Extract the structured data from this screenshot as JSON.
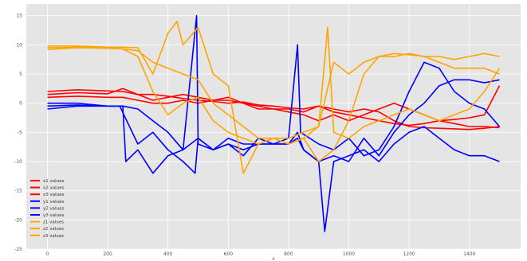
{
  "chart_data": {
    "type": "line",
    "title": "",
    "xlabel": "x",
    "ylabel": "",
    "xlim": [
      -70,
      1570
    ],
    "ylim": [
      -25,
      17
    ],
    "xticks": [
      0,
      200,
      400,
      600,
      800,
      1000,
      1200,
      1400
    ],
    "yticks": [
      15,
      10,
      5,
      0,
      -5,
      -10,
      -15,
      -20,
      -25
    ],
    "grid": true,
    "style": "ggplot",
    "legend_placement": "lower-left",
    "series": [
      {
        "name": "x1 values",
        "color": "#ff0000",
        "x": [
          0,
          100,
          200,
          250,
          300,
          350,
          400,
          450,
          500,
          550,
          600,
          650,
          700,
          750,
          800,
          850,
          900,
          950,
          1000,
          1050,
          1100,
          1150,
          1200,
          1250,
          1300,
          1350,
          1400,
          1450,
          1500
        ],
        "y": [
          2,
          2.3,
          2.1,
          2,
          1.5,
          1.5,
          1.2,
          0.8,
          0.5,
          0.3,
          0,
          0.2,
          -0.3,
          -0.5,
          -0.8,
          -1,
          -0.5,
          -1,
          -1.5,
          -1,
          -1.5,
          -3,
          -4,
          -4.2,
          -4.3,
          -4.4,
          -4.5,
          -4.3,
          -4
        ]
      },
      {
        "name": "x2 values",
        "color": "#ff0000",
        "x": [
          0,
          100,
          200,
          250,
          300,
          350,
          400,
          450,
          500,
          550,
          600,
          650,
          700,
          750,
          800,
          850,
          900,
          950,
          1000,
          1050,
          1100,
          1150,
          1200,
          1250,
          1300,
          1350,
          1400,
          1450,
          1500
        ],
        "y": [
          1.5,
          1.8,
          1.6,
          2.5,
          1.5,
          0.5,
          1,
          1.5,
          1,
          0.5,
          0.5,
          0,
          -0.5,
          -1,
          -1,
          -1.5,
          -0.5,
          -1.5,
          -2,
          -2.5,
          -3,
          -3.5,
          -3.8,
          -3.5,
          -3,
          -2.8,
          -2.5,
          -2,
          3
        ]
      },
      {
        "name": "x3 values",
        "color": "#ff0000",
        "x": [
          0,
          100,
          200,
          250,
          300,
          350,
          400,
          450,
          500,
          550,
          600,
          650,
          700,
          750,
          800,
          850,
          900,
          950,
          1000,
          1050,
          1100,
          1150,
          1200,
          1250,
          1300,
          1350,
          1400,
          1450,
          1500
        ],
        "y": [
          1,
          1.2,
          1,
          1,
          0.5,
          0,
          0,
          0.5,
          0,
          0.5,
          1,
          0,
          -1,
          -1,
          -1.5,
          -2,
          -3,
          -2,
          -3,
          -2,
          -1,
          0,
          -1,
          -2,
          -3,
          -3.5,
          -4,
          -4,
          -4.2
        ]
      },
      {
        "name": "y1 values",
        "color": "#0000ff",
        "x": [
          0,
          100,
          200,
          250,
          260,
          300,
          350,
          400,
          450,
          500,
          550,
          600,
          650,
          700,
          750,
          800,
          830,
          850,
          900,
          920,
          950,
          1000,
          1050,
          1100,
          1150,
          1200,
          1250,
          1300,
          1350,
          1400,
          1450,
          1500
        ],
        "y": [
          -0.5,
          -0.3,
          -0.5,
          -0.5,
          -10,
          -8,
          -12,
          -9,
          -8,
          -6,
          -8,
          -7,
          -8,
          -7,
          -7,
          -7,
          -6,
          -8,
          -10,
          -22,
          -10,
          -9,
          -8,
          -10,
          -7,
          -5,
          -4,
          -6,
          -8,
          -9,
          -9,
          -10
        ]
      },
      {
        "name": "y2 values",
        "color": "#0000ff",
        "x": [
          0,
          100,
          200,
          240,
          300,
          350,
          400,
          450,
          490,
          500,
          550,
          600,
          650,
          700,
          750,
          800,
          830,
          850,
          900,
          950,
          1000,
          1050,
          1100,
          1150,
          1200,
          1250,
          1300,
          1350,
          1400,
          1450,
          1500
        ],
        "y": [
          -1,
          -0.5,
          -0.5,
          -0.5,
          -7,
          -5,
          -8,
          -10,
          -12,
          -6,
          -8,
          -7,
          -9,
          -6,
          -7,
          -7,
          -5,
          -8,
          -10,
          -9,
          -10,
          -6,
          -9,
          -5,
          -2,
          0,
          3,
          4,
          4,
          3.5,
          4
        ]
      },
      {
        "name": "y3 values",
        "color": "#0000ff",
        "x": [
          0,
          100,
          200,
          250,
          300,
          350,
          400,
          450,
          495,
          500,
          550,
          600,
          650,
          700,
          750,
          800,
          830,
          840,
          900,
          950,
          1000,
          1050,
          1100,
          1150,
          1200,
          1250,
          1300,
          1350,
          1400,
          1450,
          1500
        ],
        "y": [
          0,
          0,
          -0.5,
          -0.5,
          -1,
          -3,
          -5,
          -8,
          15,
          -7,
          -8,
          -6,
          -7,
          -7,
          -7,
          -6,
          10,
          -5,
          -7,
          -8,
          -6,
          -9,
          -8,
          -4,
          2,
          7,
          6,
          2,
          0,
          -1,
          -4
        ]
      },
      {
        "name": "z1 values",
        "color": "#ffa500",
        "x": [
          0,
          100,
          200,
          250,
          300,
          350,
          400,
          450,
          500,
          550,
          600,
          650,
          700,
          750,
          800,
          850,
          900,
          930,
          950,
          1000,
          1050,
          1100,
          1150,
          1200,
          1250,
          1300,
          1350,
          1400,
          1450,
          1500
        ],
        "y": [
          9.5,
          9.6,
          9.5,
          9.3,
          8,
          2,
          -2,
          0,
          1,
          -3,
          -5,
          -6,
          -7,
          -6,
          -6,
          -5,
          -4,
          13,
          -5,
          -6,
          -4,
          -3,
          -2,
          -1,
          -2,
          -3,
          -2,
          -1,
          2,
          6
        ]
      },
      {
        "name": "z2 values",
        "color": "#ffa500",
        "x": [
          0,
          100,
          200,
          250,
          300,
          350,
          400,
          430,
          450,
          500,
          550,
          600,
          650,
          700,
          750,
          800,
          850,
          900,
          950,
          1000,
          1050,
          1100,
          1150,
          1200,
          1250,
          1300,
          1350,
          1400,
          1450,
          1500
        ],
        "y": [
          9.8,
          9.8,
          9.6,
          9.6,
          9.5,
          5,
          12,
          14,
          10,
          13,
          5,
          3,
          -12,
          -7,
          -6,
          -7,
          -6,
          -10,
          -8,
          -3,
          5,
          8,
          8,
          8.5,
          8,
          8,
          7.5,
          8,
          8.5,
          8
        ]
      },
      {
        "name": "z3 values",
        "color": "#ffa500",
        "x": [
          0,
          100,
          200,
          250,
          300,
          350,
          400,
          450,
          500,
          550,
          600,
          650,
          700,
          750,
          800,
          850,
          900,
          950,
          1000,
          1050,
          1100,
          1150,
          1200,
          1250,
          1300,
          1350,
          1400,
          1450,
          1500
        ],
        "y": [
          9.2,
          9.5,
          9.4,
          9.3,
          9,
          7,
          6,
          5,
          4,
          0,
          -2,
          -4,
          -6,
          -6,
          -7,
          -6,
          -4,
          7,
          5,
          7,
          8,
          8.5,
          8.3,
          8,
          7,
          6,
          6,
          6,
          5
        ]
      }
    ]
  }
}
